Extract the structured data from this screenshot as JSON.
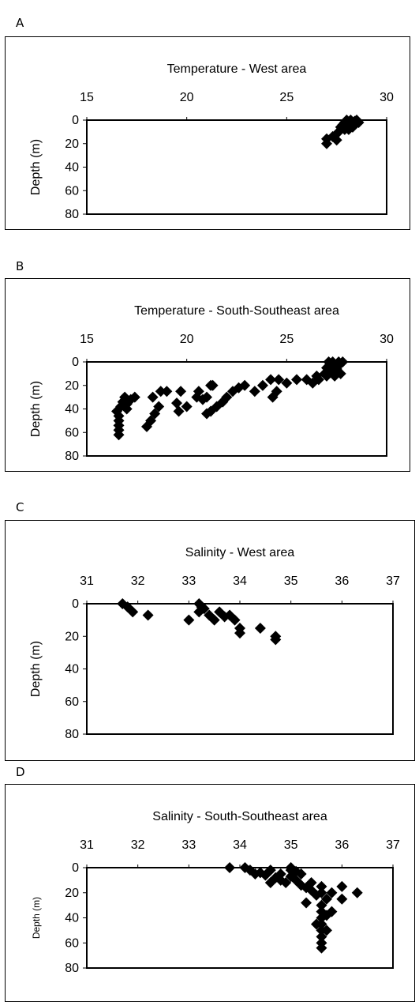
{
  "panel_labels": [
    "A",
    "B",
    "C",
    "D"
  ],
  "chart_data": [
    {
      "type": "scatter",
      "title": "Temperature - West area",
      "xlabel": "",
      "ylabel": "Depth (m)",
      "xlim": [
        15,
        30
      ],
      "ylim": [
        0,
        80
      ],
      "x_ticks": [
        "15",
        "20",
        "25",
        "30"
      ],
      "y_ticks": [
        "0",
        "20",
        "40",
        "60",
        "80"
      ],
      "x_axis_position": "top",
      "y_axis_inverted": true,
      "grid": false,
      "marker": "diamond",
      "points": [
        [
          27.0,
          20
        ],
        [
          27.0,
          16
        ],
        [
          27.3,
          14
        ],
        [
          27.5,
          17
        ],
        [
          27.6,
          10
        ],
        [
          27.7,
          6
        ],
        [
          27.8,
          4
        ],
        [
          27.9,
          2
        ],
        [
          28.0,
          0
        ],
        [
          28.1,
          8
        ],
        [
          28.0,
          5
        ],
        [
          28.2,
          3
        ],
        [
          28.3,
          6
        ],
        [
          28.4,
          1
        ],
        [
          28.5,
          0
        ],
        [
          28.6,
          2
        ],
        [
          28.2,
          0
        ],
        [
          27.9,
          8
        ],
        [
          28.3,
          4
        ]
      ]
    },
    {
      "type": "scatter",
      "title": "Temperature - South-Southeast area",
      "xlabel": "",
      "ylabel": "Depth (m)",
      "xlim": [
        15,
        30
      ],
      "ylim": [
        0,
        80
      ],
      "x_ticks": [
        "15",
        "20",
        "25",
        "30"
      ],
      "y_ticks": [
        "0",
        "20",
        "40",
        "60",
        "80"
      ],
      "x_axis_position": "top",
      "y_axis_inverted": true,
      "grid": false,
      "marker": "diamond",
      "points": [
        [
          16.6,
          62
        ],
        [
          16.6,
          58
        ],
        [
          16.6,
          54
        ],
        [
          16.6,
          50
        ],
        [
          16.6,
          46
        ],
        [
          16.5,
          42
        ],
        [
          16.7,
          38
        ],
        [
          16.8,
          34
        ],
        [
          17.0,
          36
        ],
        [
          17.2,
          32
        ],
        [
          16.9,
          30
        ],
        [
          17.0,
          40
        ],
        [
          17.4,
          30
        ],
        [
          18.0,
          55
        ],
        [
          18.2,
          50
        ],
        [
          18.4,
          44
        ],
        [
          18.6,
          38
        ],
        [
          18.3,
          30
        ],
        [
          19.0,
          25
        ],
        [
          18.7,
          25
        ],
        [
          19.6,
          42
        ],
        [
          19.5,
          35
        ],
        [
          20.0,
          38
        ],
        [
          19.7,
          25
        ],
        [
          20.5,
          30
        ],
        [
          20.6,
          25
        ],
        [
          20.8,
          32
        ],
        [
          21.0,
          44
        ],
        [
          21.2,
          42
        ],
        [
          21.5,
          38
        ],
        [
          21.8,
          34
        ],
        [
          22.0,
          30
        ],
        [
          21.3,
          20
        ],
        [
          21.0,
          30
        ],
        [
          21.2,
          20
        ],
        [
          22.3,
          25
        ],
        [
          22.6,
          22
        ],
        [
          22.9,
          20
        ],
        [
          23.4,
          25
        ],
        [
          23.8,
          20
        ],
        [
          24.2,
          15
        ],
        [
          24.6,
          15
        ],
        [
          24.3,
          30
        ],
        [
          24.5,
          25
        ],
        [
          25.0,
          18
        ],
        [
          25.5,
          15
        ],
        [
          26.0,
          15
        ],
        [
          26.5,
          12
        ],
        [
          26.3,
          18
        ],
        [
          26.6,
          15
        ],
        [
          26.9,
          10
        ],
        [
          27.0,
          5
        ],
        [
          27.1,
          0
        ],
        [
          27.2,
          8
        ],
        [
          27.3,
          3
        ],
        [
          27.4,
          12
        ],
        [
          27.5,
          6
        ],
        [
          27.6,
          0
        ],
        [
          27.7,
          10
        ],
        [
          27.0,
          12
        ],
        [
          27.3,
          0
        ],
        [
          27.6,
          3
        ],
        [
          27.8,
          0
        ]
      ]
    },
    {
      "type": "scatter",
      "title": "Salinity - West area",
      "xlabel": "",
      "ylabel": "Depth (m)",
      "xlim": [
        31,
        37
      ],
      "ylim": [
        0,
        80
      ],
      "x_ticks": [
        "31",
        "32",
        "33",
        "34",
        "35",
        "36",
        "37"
      ],
      "y_ticks": [
        "0",
        "20",
        "40",
        "60",
        "80"
      ],
      "x_axis_position": "top",
      "y_axis_inverted": true,
      "grid": false,
      "marker": "diamond",
      "points": [
        [
          31.7,
          0
        ],
        [
          31.8,
          2
        ],
        [
          31.9,
          5
        ],
        [
          32.2,
          7
        ],
        [
          33.0,
          10
        ],
        [
          33.2,
          0
        ],
        [
          33.2,
          5
        ],
        [
          33.3,
          3
        ],
        [
          33.4,
          7
        ],
        [
          33.5,
          10
        ],
        [
          33.6,
          5
        ],
        [
          33.7,
          8
        ],
        [
          33.8,
          7
        ],
        [
          33.9,
          10
        ],
        [
          34.0,
          15
        ],
        [
          34.0,
          18
        ],
        [
          34.4,
          15
        ],
        [
          34.7,
          22
        ],
        [
          34.7,
          20
        ],
        [
          33.25,
          2
        ]
      ]
    },
    {
      "type": "scatter",
      "title": "Salinity - South-Southeast area",
      "xlabel": "",
      "ylabel": "Depth (m)",
      "xlim": [
        31,
        37
      ],
      "ylim": [
        0,
        80
      ],
      "x_ticks": [
        "31",
        "32",
        "33",
        "34",
        "35",
        "36",
        "37"
      ],
      "y_ticks": [
        "0",
        "20",
        "40",
        "60",
        "80"
      ],
      "x_axis_position": "top",
      "y_axis_inverted": true,
      "grid": false,
      "marker": "diamond",
      "points": [
        [
          33.8,
          0
        ],
        [
          34.1,
          0
        ],
        [
          34.2,
          2
        ],
        [
          34.4,
          4
        ],
        [
          34.5,
          6
        ],
        [
          34.6,
          2
        ],
        [
          34.7,
          8
        ],
        [
          34.8,
          5
        ],
        [
          34.9,
          12
        ],
        [
          35.0,
          0
        ],
        [
          35.1,
          3
        ],
        [
          35.0,
          7
        ],
        [
          35.1,
          10
        ],
        [
          35.2,
          14
        ],
        [
          35.3,
          16
        ],
        [
          35.4,
          18
        ],
        [
          35.5,
          22
        ],
        [
          35.3,
          28
        ],
        [
          35.6,
          20
        ],
        [
          35.7,
          25
        ],
        [
          35.6,
          30
        ],
        [
          35.6,
          35
        ],
        [
          35.6,
          40
        ],
        [
          35.6,
          45
        ],
        [
          35.6,
          50
        ],
        [
          35.6,
          55
        ],
        [
          35.6,
          60
        ],
        [
          35.6,
          64
        ],
        [
          35.8,
          20
        ],
        [
          35.7,
          38
        ],
        [
          35.8,
          35
        ],
        [
          36.0,
          25
        ],
        [
          36.0,
          15
        ],
        [
          36.3,
          20
        ],
        [
          35.6,
          15
        ],
        [
          34.6,
          12
        ],
        [
          34.3,
          5
        ],
        [
          34.8,
          10
        ],
        [
          35.2,
          5
        ],
        [
          35.0,
          2
        ],
        [
          35.4,
          12
        ],
        [
          35.7,
          50
        ],
        [
          35.5,
          45
        ]
      ]
    }
  ]
}
